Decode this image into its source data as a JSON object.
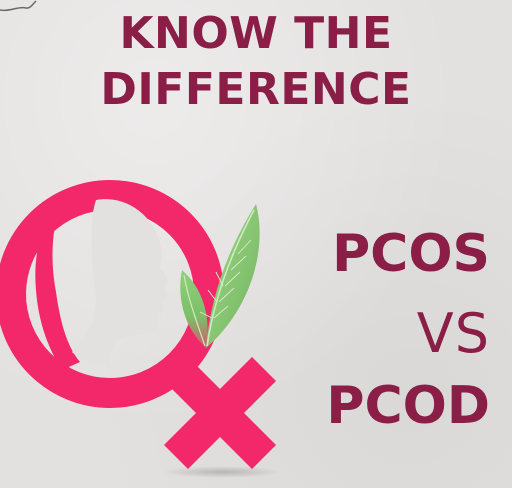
{
  "headline": {
    "line1": "KNOW THE",
    "line2": "DIFFERENCE"
  },
  "comparison": {
    "first": "PCOS",
    "versus": "VS",
    "second": "PCOD"
  },
  "colors": {
    "accent": "#8a1e47",
    "symbol_pink": "#f2286a",
    "background": "#e3e1e0",
    "leaf_green": "#7fc46a"
  },
  "icons": {
    "emblem": "female-symbol-with-face-profile-and-leaves-icon"
  }
}
